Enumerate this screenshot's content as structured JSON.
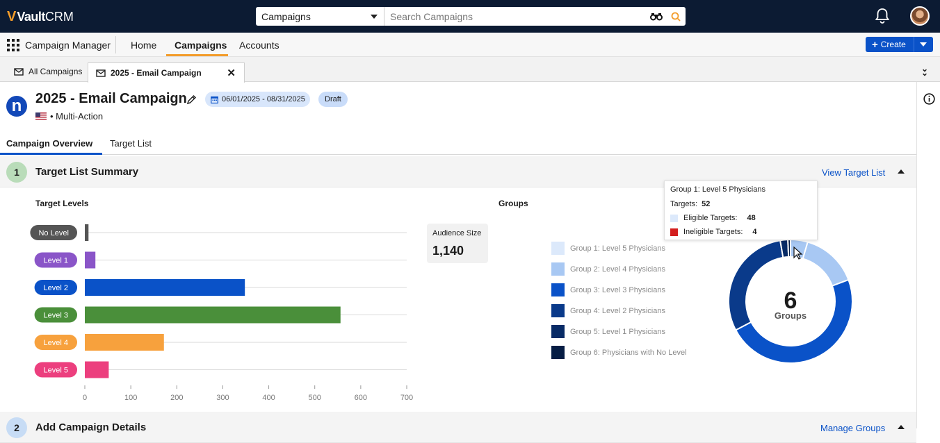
{
  "app": {
    "logo_mark": "V",
    "logo_vault": "Vault",
    "logo_crm": "CRM"
  },
  "search": {
    "object": "Campaigns",
    "placeholder": "Search Campaigns"
  },
  "nav": {
    "app_name": "Campaign Manager",
    "tabs": [
      "Home",
      "Campaigns",
      "Accounts"
    ],
    "active_tab": "Campaigns",
    "create_label": "Create"
  },
  "record_tabs": [
    {
      "label": "All Campaigns"
    },
    {
      "label": "2025 - Email Campaign",
      "active": true
    }
  ],
  "record": {
    "logo_letter": "n",
    "title": "2025 - Email Campaign",
    "date_range": "06/01/2025 - 08/31/2025",
    "status": "Draft",
    "subtitle": "• Multi-Action"
  },
  "page_tabs": [
    "Campaign Overview",
    "Target List"
  ],
  "section1": {
    "number": "1",
    "title": "Target List Summary",
    "link": "View Target List"
  },
  "section2": {
    "number": "2",
    "title": "Add Campaign Details",
    "link": "Manage Groups"
  },
  "target_levels_label": "Target Levels",
  "groups_label": "Groups",
  "audience": {
    "label": "Audience Size",
    "value": "1,140"
  },
  "chart_data": [
    {
      "type": "bar",
      "orientation": "horizontal",
      "title": "Target Levels",
      "categories": [
        "No Level",
        "Level 1",
        "Level 2",
        "Level 3",
        "Level 4",
        "Level 5"
      ],
      "values": [
        8,
        23,
        348,
        556,
        172,
        52
      ],
      "colors": [
        "#555555",
        "#8a55c8",
        "#0a52c8",
        "#4a8f3a",
        "#f7a13d",
        "#ec3f7e"
      ],
      "xlim": [
        0,
        700
      ],
      "xticks": [
        0,
        100,
        200,
        300,
        400,
        500,
        600,
        700
      ],
      "grid": true
    },
    {
      "type": "pie",
      "donut": true,
      "title": "Groups",
      "center_value": "6",
      "center_label": "Groups",
      "categories": [
        "Group 1: Level 5 Physicians",
        "Group 2: Level 4 Physicians",
        "Group 3: Level 3 Physicians",
        "Group 4: Level 2 Physicians",
        "Group 5: Level 1 Physicians",
        "Group 6: Physicians with No Level"
      ],
      "values": [
        52,
        172,
        556,
        348,
        23,
        8
      ],
      "colors": [
        "#dce9fb",
        "#a8c8f3",
        "#0a52c8",
        "#0a3a8a",
        "#082b66",
        "#061d44"
      ],
      "donut_colors": [
        "#a8c8f3",
        "#0a52c8",
        "#0a3a8a",
        "#082b66",
        "#061d44"
      ],
      "legend": "left"
    }
  ],
  "tooltip": {
    "title": "Group 1: Level 5 Physicians",
    "targets_label": "Targets:",
    "targets": "52",
    "eligible_label": "Eligible Targets:",
    "eligible": "48",
    "eligible_color": "#dce9fb",
    "ineligible_label": "Ineligible Targets:",
    "ineligible": "4",
    "ineligible_color": "#d31f1f"
  }
}
